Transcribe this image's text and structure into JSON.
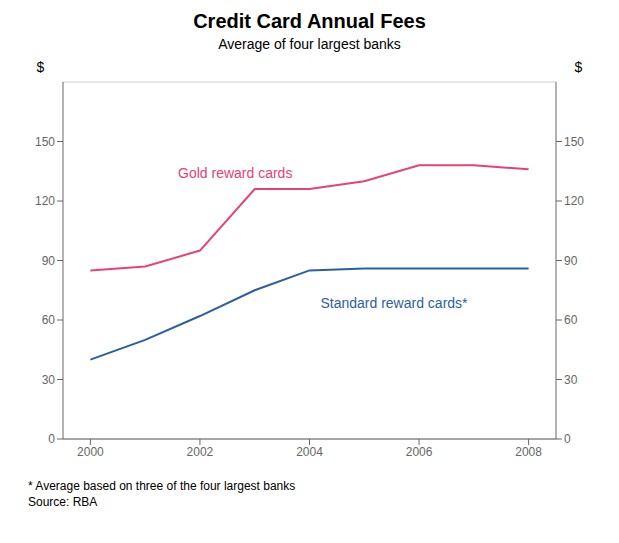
{
  "chart_data": {
    "type": "line",
    "title": "Credit Card Annual Fees",
    "subtitle": "Average of four largest banks",
    "ylabel": "$",
    "y2label": "$",
    "x": [
      2000,
      2001,
      2002,
      2003,
      2004,
      2005,
      2006,
      2007,
      2008
    ],
    "series": [
      {
        "name": "Gold reward cards",
        "color": "#e8417a",
        "values": [
          85,
          87,
          95,
          126,
          126,
          130,
          138,
          138,
          136
        ]
      },
      {
        "name": "Standard reward cards*",
        "color": "#2a5fa5",
        "values": [
          40,
          50,
          62,
          75,
          85,
          86,
          86,
          86,
          86
        ]
      }
    ],
    "annotations": [
      {
        "text": "Gold reward cards",
        "x": 2001.6,
        "y": 130,
        "color": "#e8417a"
      },
      {
        "text": "Standard reward cards*",
        "x": 2004.2,
        "y": 73,
        "color": "#2a5fa5"
      }
    ],
    "footnotes": [
      "* Average based on three of the four largest banks",
      "Source: RBA"
    ],
    "xlim": [
      1999.5,
      2008.5
    ],
    "xticks": [
      2000,
      2002,
      2004,
      2006,
      2008
    ],
    "ylim": [
      0,
      180
    ],
    "yticks": [
      0,
      30,
      60,
      90,
      120,
      150
    ],
    "y2lim": [
      0,
      180
    ],
    "y2ticks": [
      0,
      30,
      60,
      90,
      120,
      150
    ],
    "grid": true
  }
}
